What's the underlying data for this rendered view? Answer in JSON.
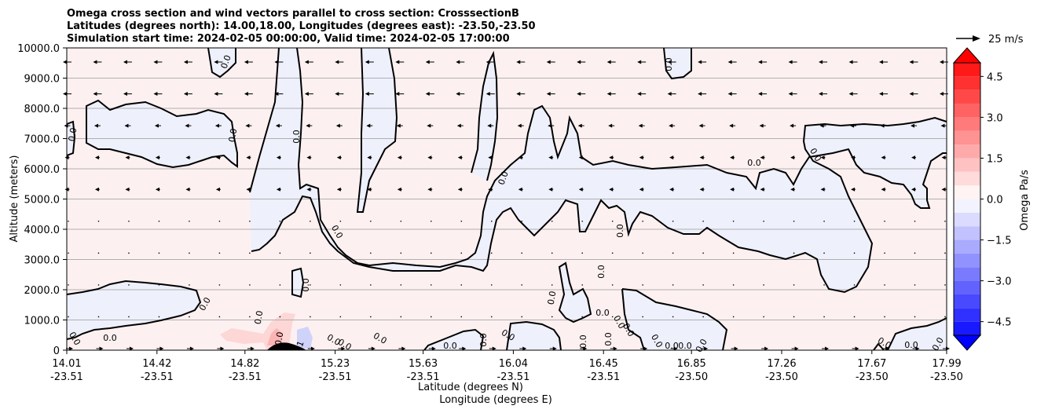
{
  "chart_data": {
    "type": "contour",
    "title_lines": [
      "Omega cross section and wind vectors parallel to cross section: CrosssectionB",
      "Latitudes (degrees north): 14.00,18.00, Longitudes (degrees east): -23.50,-23.50",
      "Simulation start time: 2024-02-05 00:00:00, Valid time: 2024-02-05 17:00:00"
    ],
    "ylabel": "Altitude (meters)",
    "xlabel_lat": "Latitude (degrees N)",
    "xlabel_lon": "Longitude (degrees E)",
    "ylim": [
      0,
      10000
    ],
    "y_ticks": [
      0,
      1000,
      2000,
      3000,
      4000,
      5000,
      6000,
      7000,
      8000,
      9000,
      10000
    ],
    "y_tick_labels": [
      "0",
      "1000.0",
      "2000.0",
      "3000.0",
      "4000.0",
      "5000.0",
      "6000.0",
      "7000.0",
      "8000.0",
      "9000.0",
      "10000.0"
    ],
    "x_ticks": [
      {
        "lat": "14.01",
        "lon": "-23.51",
        "frac": 0.0
      },
      {
        "lat": "14.42",
        "lon": "-23.51",
        "frac": 0.1025
      },
      {
        "lat": "14.82",
        "lon": "-23.51",
        "frac": 0.2025
      },
      {
        "lat": "15.23",
        "lon": "-23.51",
        "frac": 0.305
      },
      {
        "lat": "15.63",
        "lon": "-23.51",
        "frac": 0.405
      },
      {
        "lat": "16.04",
        "lon": "-23.51",
        "frac": 0.5075
      },
      {
        "lat": "16.45",
        "lon": "-23.51",
        "frac": 0.61
      },
      {
        "lat": "16.85",
        "lon": "-23.50",
        "frac": 0.71
      },
      {
        "lat": "17.26",
        "lon": "-23.50",
        "frac": 0.8125
      },
      {
        "lat": "17.67",
        "lon": "-23.50",
        "frac": 0.915
      },
      {
        "lat": "17.99",
        "lon": "-23.50",
        "frac": 1.0
      }
    ],
    "colorbar": {
      "label": "Omega Pa/s",
      "vmin": -5.0,
      "vmax": 5.0,
      "levels": [
        -5.0,
        -4.5,
        -4.0,
        -3.5,
        -3.0,
        -2.5,
        -2.0,
        -1.5,
        -1.0,
        -0.5,
        0.0,
        0.5,
        1.0,
        1.5,
        2.0,
        2.5,
        3.0,
        3.5,
        4.0,
        4.5,
        5.0
      ],
      "ticks": [
        -4.5,
        -3.0,
        -1.5,
        0.0,
        1.5,
        3.0,
        4.5
      ],
      "tick_labels": [
        "−4.5",
        "−3.0",
        "−1.5",
        "0.0",
        "1.5",
        "3.0",
        "4.5"
      ],
      "extend": "both",
      "low_color": "#0000ff",
      "high_color": "#ff0000"
    },
    "contour_level": 0.0,
    "contour_labels": [
      "0.0",
      "-1"
    ],
    "quiver_key_label": "25 m/s",
    "colors": {
      "positive_background": "#fdf0f0",
      "negative_region": "#eef0fc",
      "contour_line": "#000000",
      "grid": "#b0b0b0"
    }
  }
}
